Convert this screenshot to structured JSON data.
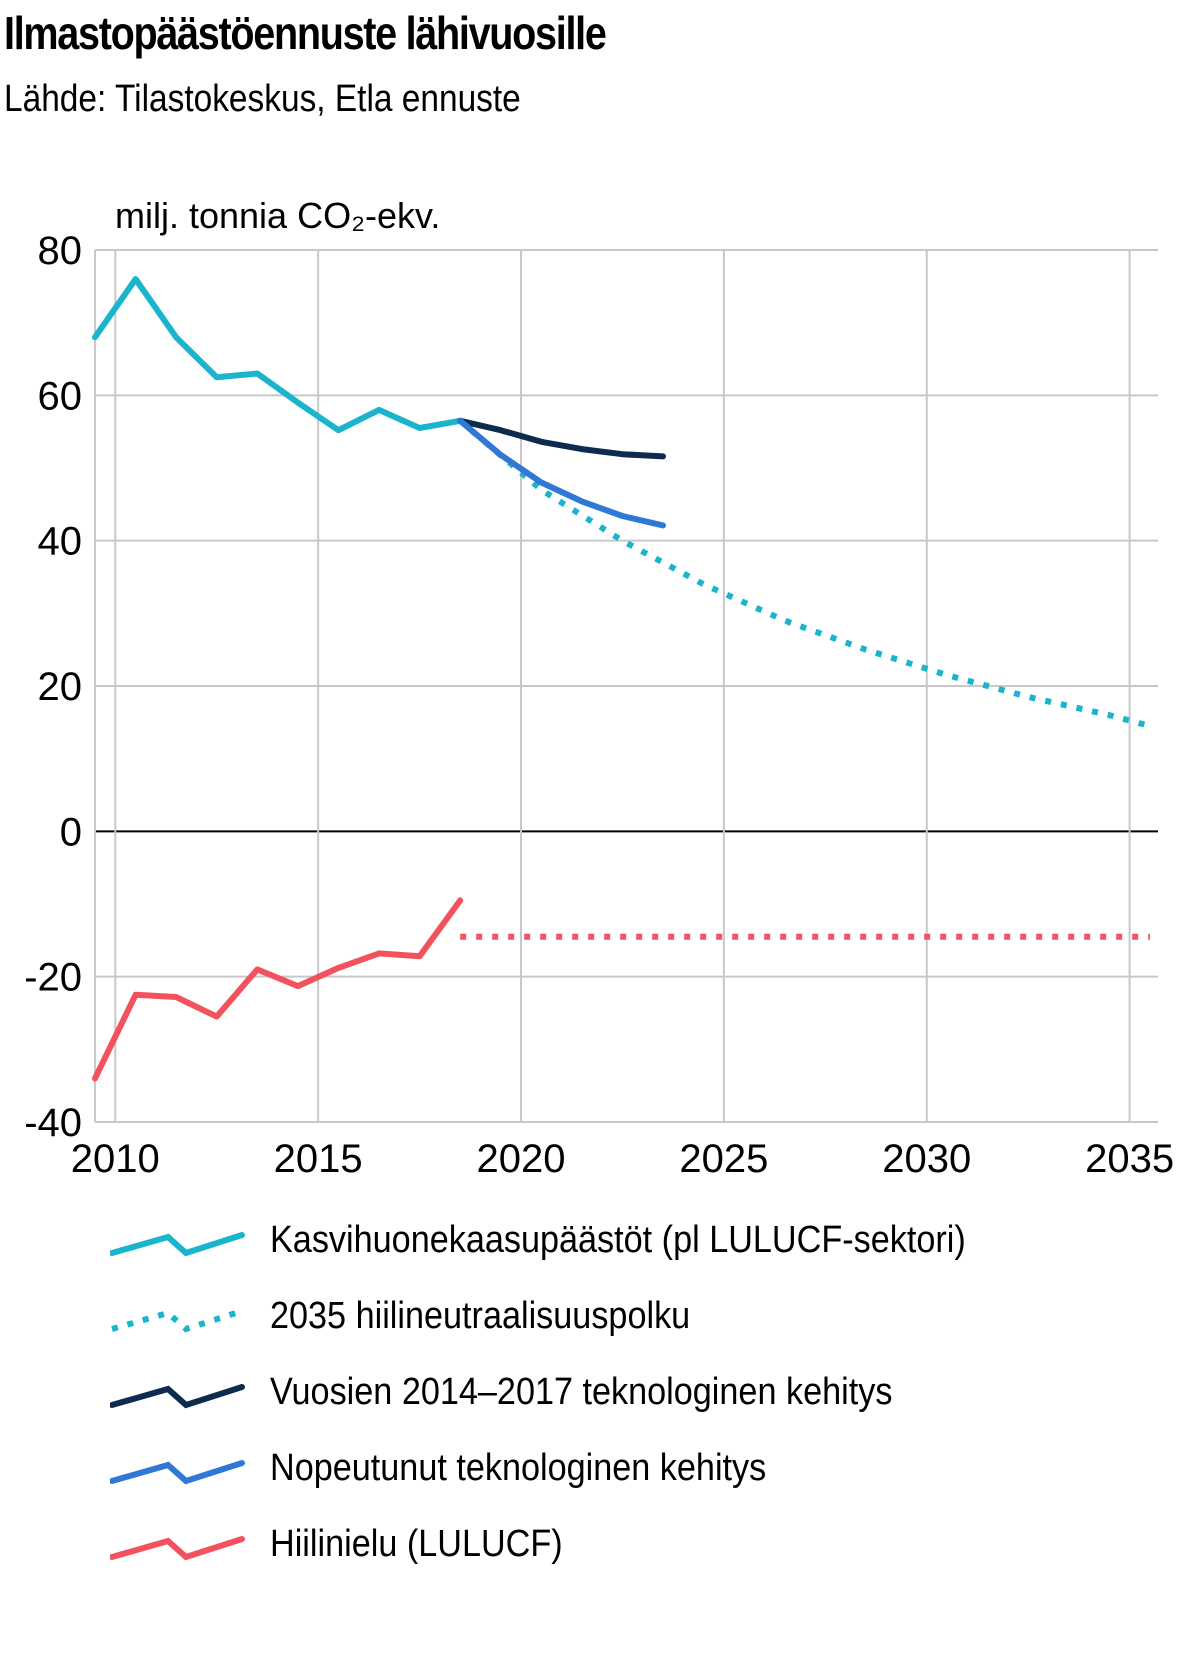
{
  "title": "Ilmastopäästöennuste lähivuosille",
  "subtitle": "Lähde: Tilastokeskus, Etla ennuste",
  "colors": {
    "emissions": "#1ab4cc",
    "pathway": "#1ab4cc",
    "tech_2014_2017": "#0d2a4f",
    "tech_fast": "#2f78d6",
    "sink": "#f2525e",
    "grid": "#c8c8c8",
    "zero": "#000000"
  },
  "chart_data": {
    "type": "line",
    "title": "Ilmastopäästöennuste lähivuosille",
    "ylabel": "milj. tonnia CO₂-ekv.",
    "xlim": [
      2009.5,
      2035.7
    ],
    "ylim": [
      -40,
      80
    ],
    "xticks": [
      2010,
      2015,
      2020,
      2025,
      2030,
      2035
    ],
    "yticks": [
      80,
      60,
      40,
      20,
      0,
      -20,
      -40
    ],
    "xtick_labels": [
      "2010",
      "2015",
      "2020",
      "2025",
      "2030",
      "2035"
    ],
    "ytick_labels": [
      "80",
      "60",
      "40",
      "20",
      "0",
      "-20",
      "-40"
    ],
    "series": [
      {
        "key": "emissions",
        "name": "Kasvihuonekaasupäästöt (pl LULUCF-sektori)",
        "style": "solid",
        "x": [
          2009.5,
          2010.5,
          2011.5,
          2012.5,
          2013.5,
          2014.5,
          2015.5,
          2016.5,
          2017.5,
          2018.5
        ],
        "y": [
          68.0,
          76.0,
          68.0,
          62.5,
          63.0,
          59.0,
          55.2,
          58.0,
          55.5,
          56.5
        ]
      },
      {
        "key": "pathway",
        "name": "2035 hiilineutraalisuuspolku",
        "style": "dotted",
        "x": [
          2018.5,
          2020.5,
          2022.5,
          2024.5,
          2026.5,
          2028.5,
          2030.5,
          2032.5,
          2034.5,
          2035.5
        ],
        "y": [
          56.5,
          47.0,
          40.0,
          34.0,
          29.0,
          25.0,
          21.5,
          18.5,
          16.0,
          14.5
        ]
      },
      {
        "key": "tech_2014_2017",
        "name": "Vuosien 2014–2017 teknologinen kehitys",
        "style": "solid",
        "x": [
          2018.5,
          2019.5,
          2020.5,
          2021.5,
          2022.5,
          2023.5
        ],
        "y": [
          56.5,
          55.2,
          53.6,
          52.6,
          51.9,
          51.6
        ]
      },
      {
        "key": "tech_fast",
        "name": "Nopeutunut teknologinen kehitys",
        "style": "solid",
        "x": [
          2018.5,
          2019.5,
          2020.5,
          2021.5,
          2022.5,
          2023.5
        ],
        "y": [
          56.5,
          51.8,
          48.0,
          45.4,
          43.4,
          42.1
        ]
      },
      {
        "key": "sink",
        "name": "Hiilinielu (LULUCF)",
        "style": "solid",
        "x": [
          2009.5,
          2010.5,
          2011.5,
          2012.5,
          2013.5,
          2014.5,
          2015.5,
          2016.5,
          2017.5,
          2018.5
        ],
        "y": [
          -34.0,
          -22.5,
          -22.8,
          -25.5,
          -19.0,
          -21.3,
          -18.8,
          -16.8,
          -17.2,
          -9.5
        ]
      },
      {
        "key": "sink_forecast",
        "name": "",
        "style": "dotted",
        "x": [
          2018.5,
          2035.5
        ],
        "y": [
          -14.5,
          -14.5
        ]
      }
    ]
  },
  "legend": {
    "items": [
      {
        "key": "emissions",
        "label": "Kasvihuonekaasupäästöt (pl LULUCF-sektori)",
        "style": "solid"
      },
      {
        "key": "pathway",
        "label": "2035 hiilineutraalisuuspolku",
        "style": "dotted"
      },
      {
        "key": "tech_2014_2017",
        "label": "Vuosien 2014–2017 teknologinen kehitys",
        "style": "solid"
      },
      {
        "key": "tech_fast",
        "label": "Nopeutunut teknologinen kehitys",
        "style": "solid"
      },
      {
        "key": "sink",
        "label": "Hiilinielu (LULUCF)",
        "style": "solid"
      }
    ]
  }
}
